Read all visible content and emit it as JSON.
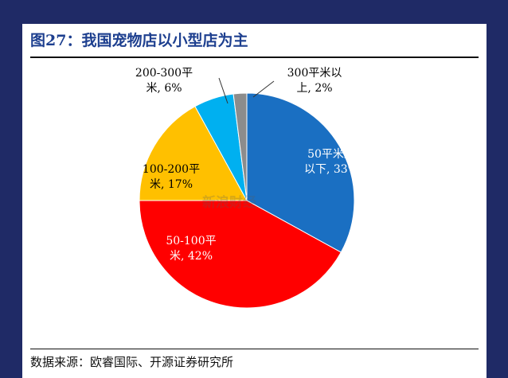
{
  "header": {
    "title": "图27：我国宠物店以小型店为主"
  },
  "footer": {
    "source": "数据来源：欧睿国际、开源证券研究所"
  },
  "watermark": {
    "text": "新浪财经"
  },
  "chart_data": {
    "type": "pie",
    "title": "",
    "slices": [
      {
        "label_lines": [
          "50平米及",
          "以下, 33%"
        ],
        "value": 33,
        "color": "#1a6fc2",
        "text_color": "#ffffff"
      },
      {
        "label_lines": [
          "50-100平",
          "米, 42%"
        ],
        "value": 42,
        "color": "#ff0000",
        "text_color": "#ffffff"
      },
      {
        "label_lines": [
          "100-200平",
          "米, 17%"
        ],
        "value": 17,
        "color": "#ffc000",
        "text_color": "#000000"
      },
      {
        "label_lines": [
          "200-300平",
          "米, 6%"
        ],
        "value": 6,
        "color": "#00b0f0",
        "text_color": "#000000"
      },
      {
        "label_lines": [
          "300平米以",
          "上, 2%"
        ],
        "value": 2,
        "color": "#8c8c8c",
        "text_color": "#000000"
      }
    ],
    "start": "12 o'clock",
    "direction": "clockwise",
    "legend": "none"
  }
}
